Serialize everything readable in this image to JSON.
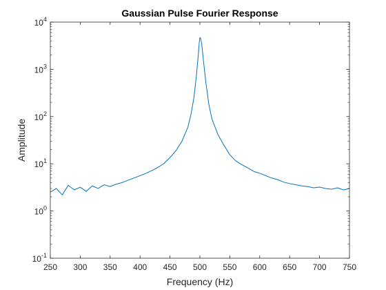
{
  "chart_data": {
    "type": "line",
    "title": "Gaussian Pulse Fourier Response",
    "xlabel": "Frequency (Hz)",
    "ylabel": "Amplitude",
    "xlim": [
      250,
      750
    ],
    "ylim": [
      0.1,
      10000
    ],
    "yscale": "log",
    "grid": false,
    "legend": "none",
    "x_ticks": [
      250,
      300,
      350,
      400,
      450,
      500,
      550,
      600,
      650,
      700,
      750
    ],
    "x_tick_labels": [
      "250",
      "300",
      "350",
      "400",
      "450",
      "500",
      "550",
      "600",
      "650",
      "700",
      "750"
    ],
    "y_ticks": [
      0.1,
      1,
      10,
      100,
      1000,
      10000
    ],
    "y_tick_labels": [
      {
        "base": "10",
        "exp": "-1"
      },
      {
        "base": "10",
        "exp": "0"
      },
      {
        "base": "10",
        "exp": "1"
      },
      {
        "base": "10",
        "exp": "2"
      },
      {
        "base": "10",
        "exp": "3"
      },
      {
        "base": "10",
        "exp": "4"
      }
    ],
    "series": [
      {
        "color": "#0072BD",
        "x": [
          250,
          260,
          270,
          280,
          290,
          300,
          310,
          320,
          330,
          340,
          350,
          360,
          370,
          380,
          390,
          400,
          410,
          420,
          430,
          440,
          450,
          460,
          470,
          480,
          485,
          490,
          494,
          497,
          499,
          500,
          501,
          503,
          506,
          510,
          515,
          520,
          530,
          540,
          550,
          560,
          570,
          580,
          590,
          600,
          610,
          620,
          630,
          640,
          650,
          660,
          670,
          680,
          690,
          700,
          710,
          720,
          730,
          740,
          750
        ],
        "values": [
          2.5,
          3.0,
          2.2,
          3.5,
          2.8,
          3.2,
          2.6,
          3.4,
          3.0,
          3.6,
          3.3,
          3.7,
          4.0,
          4.5,
          5.0,
          5.6,
          6.3,
          7.2,
          8.4,
          10.2,
          13.5,
          19.0,
          30.0,
          60.0,
          110.0,
          250.0,
          700.0,
          1800.0,
          3800.0,
          4700.0,
          4600.0,
          3500.0,
          1500.0,
          520.0,
          180.0,
          90.0,
          42.0,
          25.0,
          15.5,
          11.5,
          9.6,
          8.2,
          6.9,
          6.3,
          5.6,
          5.0,
          4.6,
          4.1,
          3.8,
          3.6,
          3.4,
          3.3,
          3.1,
          3.2,
          3.0,
          2.9,
          3.1,
          2.8,
          3.0
        ]
      }
    ]
  }
}
